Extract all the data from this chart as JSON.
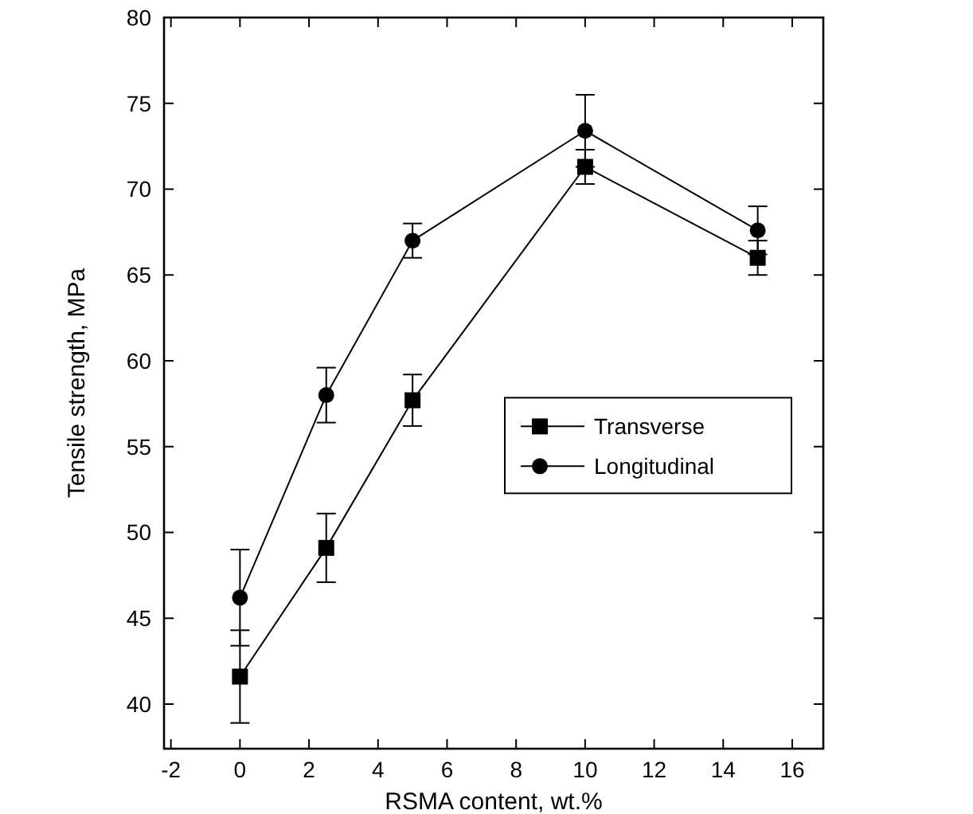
{
  "chart_data": {
    "type": "line",
    "xlabel": "RSMA content, wt.%",
    "ylabel": "Tensile strength, MPa",
    "x": [
      0,
      2.5,
      5,
      10,
      15
    ],
    "xlim": [
      -2.2,
      16.9
    ],
    "xticks": [
      -2,
      0,
      2,
      4,
      6,
      8,
      10,
      12,
      14,
      16
    ],
    "ylim": [
      37.4,
      80
    ],
    "yticks": [
      40,
      45,
      50,
      55,
      60,
      65,
      70,
      75,
      80
    ],
    "series": [
      {
        "name": "Transverse",
        "color": "#000000",
        "marker": "square",
        "values": [
          41.6,
          49.1,
          57.7,
          71.3,
          66
        ],
        "errors": [
          2.7,
          2,
          1.5,
          1,
          1
        ]
      },
      {
        "name": "Longitudinal",
        "color": "#000000",
        "marker": "circle",
        "values": [
          46.2,
          58,
          67,
          73.4,
          67.6
        ],
        "errors": [
          2.8,
          1.6,
          1,
          2.1,
          1.4
        ]
      }
    ],
    "legend": "right",
    "grid": false,
    "line_style": "solid"
  }
}
